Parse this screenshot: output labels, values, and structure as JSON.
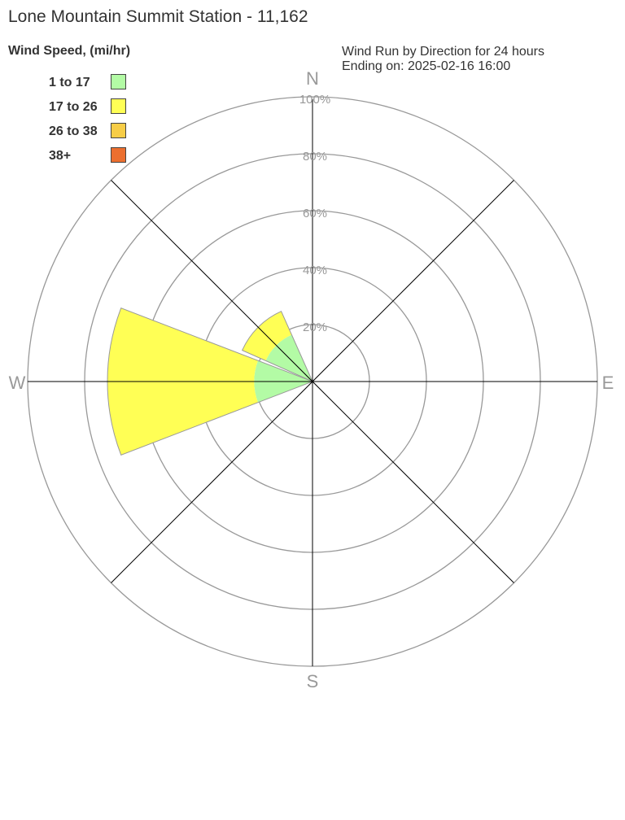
{
  "title": "Lone Mountain Summit Station - 11,162",
  "subtitle_line1": "Wind Run by Direction for 24 hours",
  "subtitle_line2": "Ending on: 2025-02-16 16:00",
  "chart_data": {
    "type": "polar-stacked-bar",
    "legend_title": "Wind Speed, (mi/hr)",
    "legend_placement": "top-left",
    "series": [
      {
        "name": "1 to 17",
        "color": "#b3fba5"
      },
      {
        "name": "17 to 26",
        "color": "#ffff55"
      },
      {
        "name": "26 to 38",
        "color": "#f7cd47"
      },
      {
        "name": "38+",
        "color": "#ec6f2f"
      }
    ],
    "directions": [
      "N",
      "E",
      "S",
      "W"
    ],
    "radial_ticks": [
      "20%",
      "40%",
      "60%",
      "80%",
      "100%"
    ],
    "rmax": 100,
    "bars": [
      {
        "direction_deg": 270,
        "values": [
          20.5,
          51.5,
          0,
          0
        ]
      },
      {
        "direction_deg": 315,
        "values": [
          18,
          9,
          0,
          0
        ]
      }
    ]
  }
}
